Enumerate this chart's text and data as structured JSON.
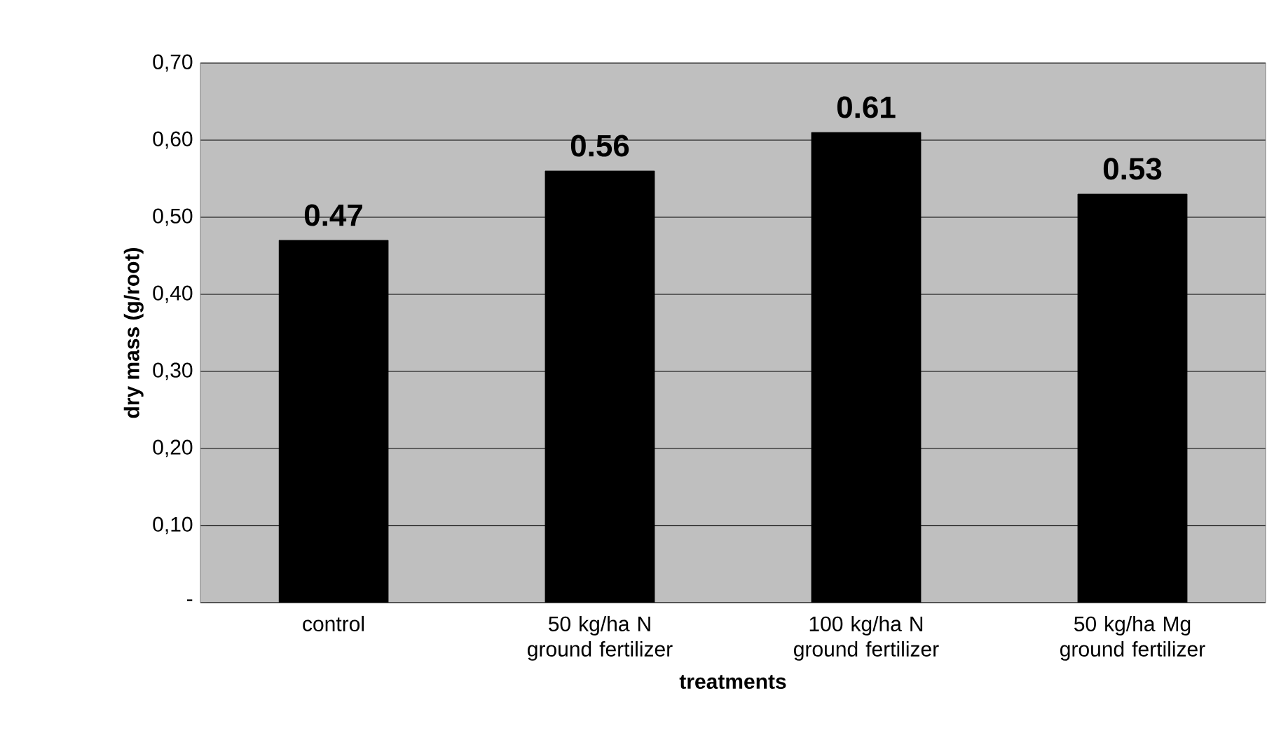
{
  "chart_data": {
    "type": "bar",
    "xlabel": "treatments",
    "ylabel": "dry mass (g/root)",
    "categories": [
      "control",
      "50 kg/ha N ground fertilizer",
      "100 kg/ha N ground fertilizer",
      "50 kg/ha Mg ground fertilizer"
    ],
    "values": [
      0.47,
      0.56,
      0.61,
      0.53
    ],
    "color": "#000000",
    "ylim": [
      0,
      0.7
    ],
    "yticks": [
      {
        "value": 0,
        "label": "-"
      },
      {
        "value": 0.1,
        "label": "0,10"
      },
      {
        "value": 0.2,
        "label": "0,20"
      },
      {
        "value": 0.3,
        "label": "0,30"
      },
      {
        "value": 0.4,
        "label": "0,40"
      },
      {
        "value": 0.5,
        "label": "0,50"
      },
      {
        "value": 0.6,
        "label": "0,60"
      },
      {
        "value": 0.7,
        "label": "0,70"
      }
    ],
    "grid": "y",
    "data_labels": true
  }
}
